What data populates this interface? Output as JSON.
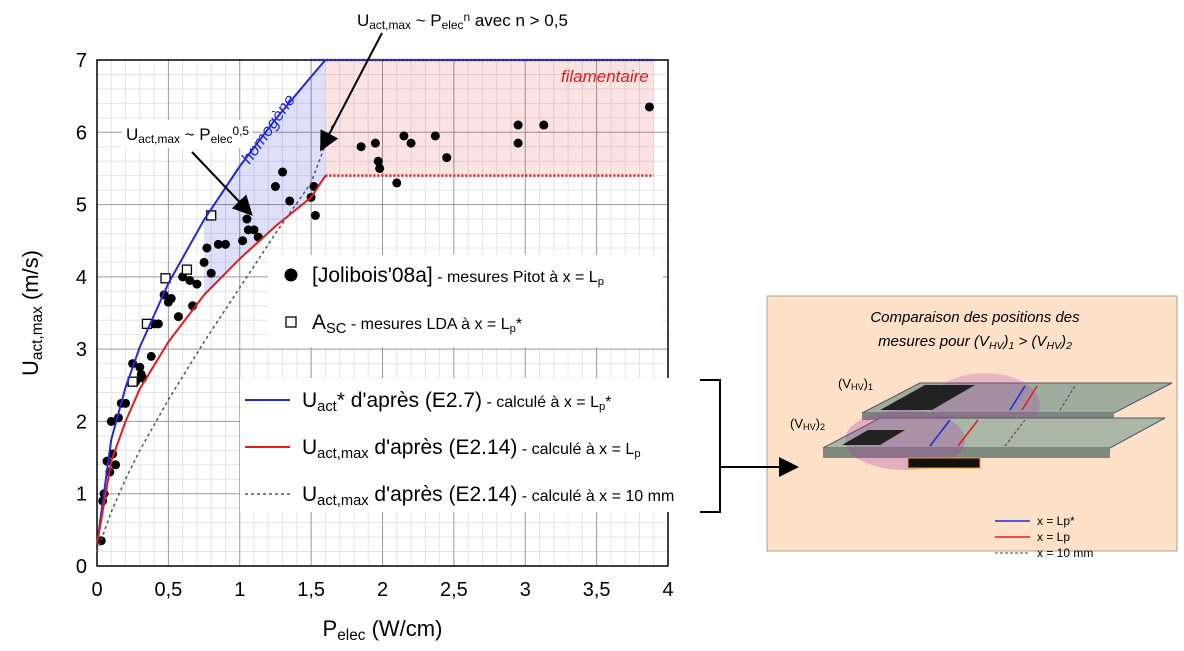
{
  "chart_data": {
    "type": "scatter",
    "xlabel": [
      {
        "text": "P"
      },
      {
        "text": "elec",
        "shift": "sub"
      },
      {
        "text": " (W/cm)"
      }
    ],
    "ylabel": [
      {
        "text": "U"
      },
      {
        "text": "act,max",
        "shift": "sub"
      },
      {
        "text": " (m/s)"
      }
    ],
    "xlim": [
      0,
      4
    ],
    "ylim": [
      0,
      7
    ],
    "xticks": [
      0,
      {
        "value": 0.5,
        "label": "0,5"
      },
      1,
      {
        "value": 1.5,
        "label": "1,5"
      },
      2,
      {
        "value": 2.5,
        "label": "2,5"
      },
      3,
      {
        "value": 3.5,
        "label": "3,5"
      },
      4
    ],
    "yticks": [
      0,
      1,
      2,
      3,
      4,
      5,
      6,
      7
    ],
    "grid": true,
    "series": [
      {
        "name": [
          {
            "text": "[Jolibois'08a]"
          }
        ],
        "detail": [
          {
            "text": " - mesures Pitot à x = L"
          },
          {
            "text": "p",
            "shift": "sub"
          }
        ],
        "marker": "circle",
        "color": "#000000",
        "x": [
          0.03,
          0.04,
          0.05,
          0.07,
          0.09,
          0.1,
          0.11,
          0.13,
          0.15,
          0.17,
          0.2,
          0.25,
          0.27,
          0.3,
          0.31,
          0.32,
          0.38,
          0.4,
          0.43,
          0.47,
          0.5,
          0.52,
          0.57,
          0.6,
          0.65,
          0.67,
          0.7,
          0.75,
          0.77,
          0.8,
          0.85,
          0.9,
          1.02,
          1.05,
          1.06,
          1.1,
          1.13,
          1.25,
          1.3,
          1.35,
          1.5,
          1.52,
          1.53,
          1.85,
          1.95,
          1.97,
          1.98,
          2.1,
          2.15,
          2.2,
          2.37,
          2.45,
          2.95,
          2.95,
          3.13,
          3.87
        ],
        "values": [
          0.35,
          0.9,
          1.0,
          1.45,
          1.3,
          2.0,
          1.55,
          1.4,
          2.05,
          2.25,
          2.25,
          2.8,
          2.55,
          2.75,
          2.65,
          2.6,
          2.9,
          3.35,
          3.35,
          3.75,
          3.65,
          3.7,
          3.45,
          4.0,
          3.95,
          3.6,
          3.9,
          4.2,
          4.4,
          4.05,
          4.45,
          4.45,
          4.5,
          4.8,
          4.65,
          4.65,
          4.55,
          5.25,
          5.45,
          5.05,
          5.1,
          5.25,
          4.85,
          5.8,
          5.85,
          5.6,
          5.5,
          5.3,
          5.95,
          5.85,
          5.95,
          5.65,
          6.1,
          5.85,
          6.1,
          6.35
        ]
      },
      {
        "name": [
          {
            "text": "A"
          },
          {
            "text": "SC",
            "shift": "sub"
          }
        ],
        "detail": [
          {
            "text": " - mesures LDA à x = L"
          },
          {
            "text": "p",
            "shift": "sub"
          },
          {
            "text": "*"
          }
        ],
        "marker": "square",
        "color": "#000000",
        "x": [
          0.25,
          0.35,
          0.48,
          0.63,
          0.8
        ],
        "values": [
          2.55,
          3.35,
          3.98,
          4.1,
          4.85
        ]
      },
      {
        "name": [
          {
            "text": "U"
          },
          {
            "text": "act",
            "shift": "sub"
          },
          {
            "text": "* d'après (E2.7)"
          }
        ],
        "detail": [
          {
            "text": " - calculé à x = L"
          },
          {
            "text": "p",
            "shift": "sub"
          },
          {
            "text": "*"
          }
        ],
        "marker": "line",
        "color": "#1f2bd6",
        "x": [
          0,
          0.1,
          0.2,
          0.3,
          0.5,
          0.75,
          1,
          1.25,
          1.5,
          1.6
        ],
        "values": [
          0.3,
          1.75,
          2.47,
          3.03,
          3.91,
          4.79,
          5.53,
          6.18,
          6.77,
          7.0
        ]
      },
      {
        "name": [
          {
            "text": "U"
          },
          {
            "text": "act,max",
            "shift": "sub"
          },
          {
            "text": " d'après (E2.14)"
          }
        ],
        "detail": [
          {
            "text": " - calculé à x = L"
          },
          {
            "text": "p",
            "shift": "sub"
          }
        ],
        "marker": "line",
        "color": "#e31a1c",
        "x": [
          0,
          0.1,
          0.2,
          0.3,
          0.5,
          0.75,
          1,
          1.25,
          1.5,
          1.6
        ],
        "values": [
          0.3,
          1.45,
          2.0,
          2.45,
          3.1,
          3.75,
          4.25,
          4.7,
          5.1,
          5.4
        ]
      },
      {
        "name": [
          {
            "text": "U"
          },
          {
            "text": "act,max",
            "shift": "sub"
          },
          {
            "text": " d'après (E2.14)"
          }
        ],
        "detail": [
          {
            "text": " - calculé à x = 10 mm"
          }
        ],
        "marker": "line",
        "dash": true,
        "color": "#555555",
        "x": [
          0,
          0.1,
          0.2,
          0.3,
          0.5,
          0.75,
          1,
          1.25,
          1.5,
          1.65
        ],
        "values": [
          0.2,
          0.75,
          1.2,
          1.6,
          2.3,
          3.1,
          3.85,
          4.6,
          5.3,
          6.1
        ]
      }
    ],
    "regions": [
      {
        "label": "homogène",
        "color": "#1f2bd6",
        "xlim": [
          0.75,
          1.6
        ]
      },
      {
        "label": "filamentaire",
        "color": "#e31a1c",
        "xlim": [
          1.6,
          3.9
        ],
        "ylim": [
          5.4,
          7
        ]
      }
    ],
    "annotations": [
      [
        {
          "text": "U"
        },
        {
          "text": "act,max",
          "shift": "sub"
        },
        {
          "text": " ~ P"
        },
        {
          "text": "elec",
          "shift": "sub"
        },
        {
          "text": "0,5",
          "shift": "sup"
        }
      ],
      [
        {
          "text": "U"
        },
        {
          "text": "act,max",
          "shift": "sub"
        },
        {
          "text": " ~ P"
        },
        {
          "text": "elec",
          "shift": "sub"
        },
        {
          "text": "n",
          "shift": "sup"
        },
        {
          "text": " avec n > 0,5"
        }
      ]
    ]
  },
  "inset": {
    "title": [
      [
        {
          "text": "Comparaison des positions des"
        }
      ],
      [
        {
          "text": "mesures pour (V"
        },
        {
          "text": "HV",
          "shift": "sub"
        },
        {
          "text": ")"
        },
        {
          "text": "1",
          "shift": "sub"
        },
        {
          "text": " > (V"
        },
        {
          "text": "HV",
          "shift": "sub"
        },
        {
          "text": ")"
        },
        {
          "text": "2",
          "shift": "sub"
        }
      ]
    ],
    "labels": [
      [
        {
          "text": "(V"
        },
        {
          "text": "HV",
          "shift": "sub"
        },
        {
          "text": ")"
        },
        {
          "text": "1",
          "shift": "sub"
        }
      ],
      [
        {
          "text": "(V"
        },
        {
          "text": "HV",
          "shift": "sub"
        },
        {
          "text": ")"
        },
        {
          "text": "2",
          "shift": "sub"
        }
      ]
    ],
    "legend": [
      "x = Lp*",
      "x = Lp",
      "x = 10 mm"
    ]
  }
}
